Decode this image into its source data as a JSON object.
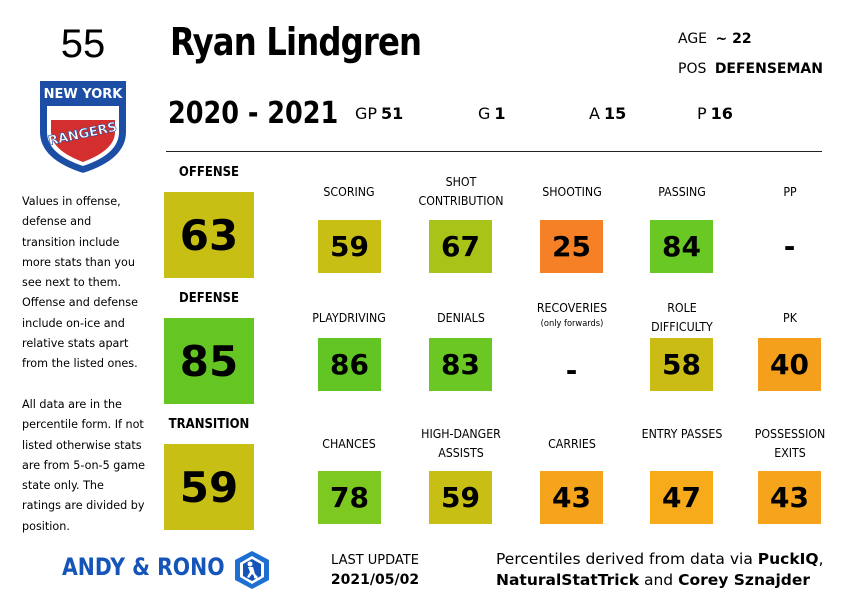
{
  "player": {
    "number": "55",
    "name": "Ryan Lindgren",
    "season": "2020 - 2021",
    "age_label": "AGE",
    "age_value": "~ 22",
    "pos_label": "POS",
    "pos_value": "DEFENSEMAN",
    "team_logo_text": [
      "NEW YORK",
      "RANGERS"
    ]
  },
  "stats": [
    {
      "label": "GP",
      "value": "51"
    },
    {
      "label": "G",
      "value": "1"
    },
    {
      "label": "A",
      "value": "15"
    },
    {
      "label": "P",
      "value": "16"
    }
  ],
  "note": "Values in offense, defense and transition include more stats than you see next to them. Offense and defense include on-ice and relative stats apart from the listed ones.\n\nAll data are in the percentile form. If not listed otherwise stats are from 5-on-5 game state only. The ratings are divided by position.",
  "sections": [
    {
      "title": "OFFENSE",
      "value": "63",
      "color": "#c8bf14",
      "metrics": [
        {
          "label": "SCORING",
          "sub": "",
          "value": "59",
          "color": "#c8bf14"
        },
        {
          "label": "SHOT CONTRIBUTION",
          "sub": "",
          "value": "67",
          "color": "#a9c319"
        },
        {
          "label": "SHOOTING",
          "sub": "",
          "value": "25",
          "color": "#f58025"
        },
        {
          "label": "PASSING",
          "sub": "",
          "value": "84",
          "color": "#69c824"
        },
        {
          "label": "PP",
          "sub": "",
          "value": "-",
          "color": ""
        }
      ]
    },
    {
      "title": "DEFENSE",
      "value": "85",
      "color": "#65c623",
      "metrics": [
        {
          "label": "PLAYDRIVING",
          "sub": "",
          "value": "86",
          "color": "#63c523"
        },
        {
          "label": "DENIALS",
          "sub": "",
          "value": "83",
          "color": "#6bc724"
        },
        {
          "label": "RECOVERIES",
          "sub": "(only forwards)",
          "value": "-",
          "color": ""
        },
        {
          "label": "ROLE DIFFICULTY",
          "sub": "",
          "value": "58",
          "color": "#cabc14"
        },
        {
          "label": "PK",
          "sub": "",
          "value": "40",
          "color": "#f5a01c"
        }
      ]
    },
    {
      "title": "TRANSITION",
      "value": "59",
      "color": "#c8bf14",
      "metrics": [
        {
          "label": "CHANCES",
          "sub": "",
          "value": "78",
          "color": "#7ec921"
        },
        {
          "label": "HIGH-DANGER ASSISTS",
          "sub": "",
          "value": "59",
          "color": "#c8bf14"
        },
        {
          "label": "CARRIES",
          "sub": "",
          "value": "43",
          "color": "#f6a41c"
        },
        {
          "label": "ENTRY PASSES",
          "sub": "",
          "value": "47",
          "color": "#f7ab1b"
        },
        {
          "label": "POSSESSION EXITS",
          "sub": "",
          "value": "43",
          "color": "#f6a41c"
        }
      ]
    }
  ],
  "footer": {
    "brand": "ANDY & RONO",
    "last_update_label": "LAST UPDATE",
    "last_update_date": "2021/05/02",
    "credits_line1_prefix": "Percentiles derived from data via ",
    "credits_line1_bold": "PuckIQ",
    "credits_line1_suffix": ",",
    "credits_line2_bold1": "NaturalStatTrick",
    "credits_line2_mid": " and ",
    "credits_line2_bold2": "Corey Sznajder"
  },
  "icons": {
    "team_logo": "rangers-shield-icon",
    "brand_logo": "hockey-player-hexagon-icon"
  }
}
